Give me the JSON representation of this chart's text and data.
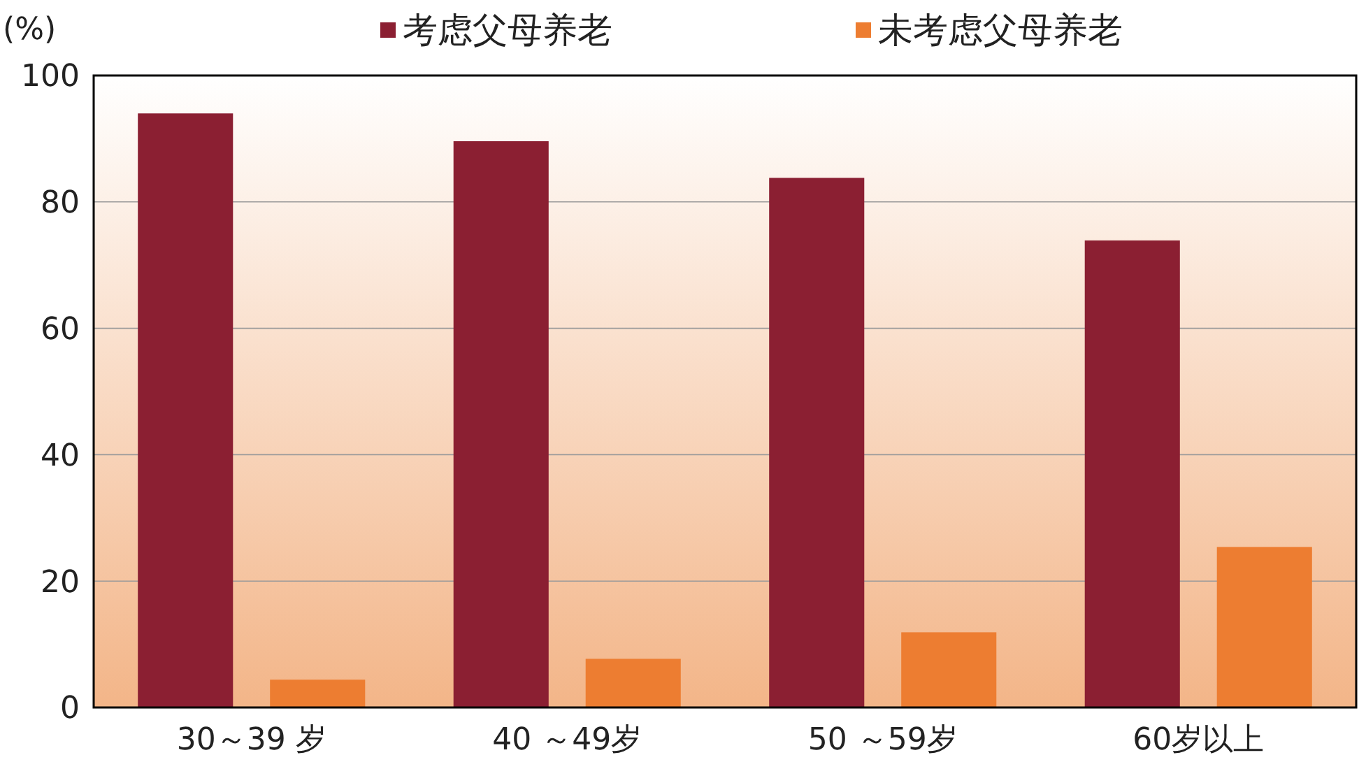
{
  "chart_data": {
    "type": "bar",
    "ylabel": "(%)",
    "categories": [
      "30～39 岁",
      "40 ～49岁",
      "50 ～59岁",
      "60岁以上"
    ],
    "series": [
      {
        "name": "考虑父母养老",
        "color": "#8b1f32",
        "values": [
          94.0,
          89.6,
          83.8,
          73.9
        ]
      },
      {
        "name": "未考虑父母养老",
        "color": "#ed7d31",
        "values": [
          4.4,
          7.7,
          11.9,
          25.4
        ]
      }
    ],
    "ylim": [
      0,
      100
    ],
    "yticks": [
      0,
      20,
      40,
      60,
      80,
      100
    ],
    "grid": "y",
    "legend": "top"
  }
}
